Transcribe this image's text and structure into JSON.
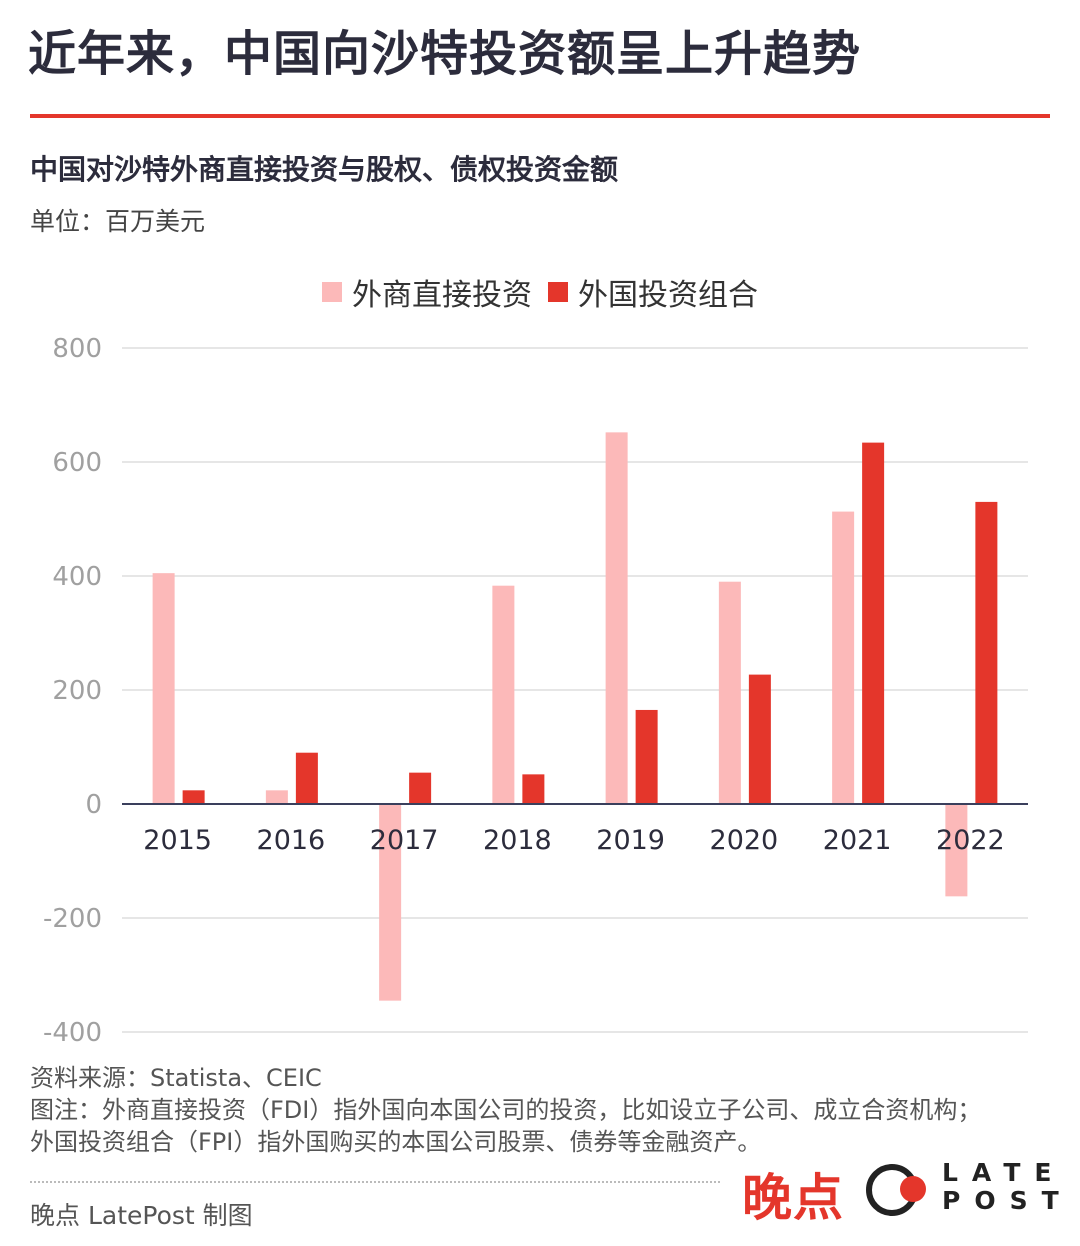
{
  "headline": "近年来，中国向沙特投资额呈上升趋势",
  "subtitle": "中国对沙特外商直接投资与股权、债权投资金额",
  "unit": "单位：百万美元",
  "colors": {
    "accent": "#e4362b",
    "fdi": "#fcb9b9",
    "fpi": "#e4362b",
    "text": "#2c2c3c"
  },
  "chart_data": {
    "type": "bar",
    "title": "中国对沙特外商直接投资与股权、债权投资金额",
    "ylabel": "单位：百万美元",
    "categories": [
      "2015",
      "2016",
      "2017",
      "2018",
      "2019",
      "2020",
      "2021",
      "2022"
    ],
    "series": [
      {
        "name": "外商直接投资",
        "values": [
          405,
          24,
          -345,
          383,
          652,
          390,
          513,
          -162
        ]
      },
      {
        "name": "外国投资组合",
        "values": [
          24,
          90,
          55,
          52,
          165,
          227,
          634,
          530
        ]
      }
    ],
    "ylim": [
      -400,
      800
    ],
    "yticks": [
      800,
      600,
      400,
      200,
      0,
      -200,
      -400
    ],
    "ytick_labels": [
      "800",
      "600",
      "400",
      "200",
      "0",
      "-200",
      "-400"
    ],
    "grid": true,
    "legend": "top-center"
  },
  "notes": {
    "source": "资料来源：Statista、CEIC",
    "note1": "图注：外商直接投资（FDI）指外国向本国公司的投资，比如设立子公司、成立合资机构；",
    "note2": "外国投资组合（FPI）指外国购买的本国公司股票、债券等金融资产。"
  },
  "credit": "晚点 LatePost 制图",
  "brand": {
    "cn": "晚点",
    "en_line1": "LATE",
    "en_line2": "POST"
  }
}
